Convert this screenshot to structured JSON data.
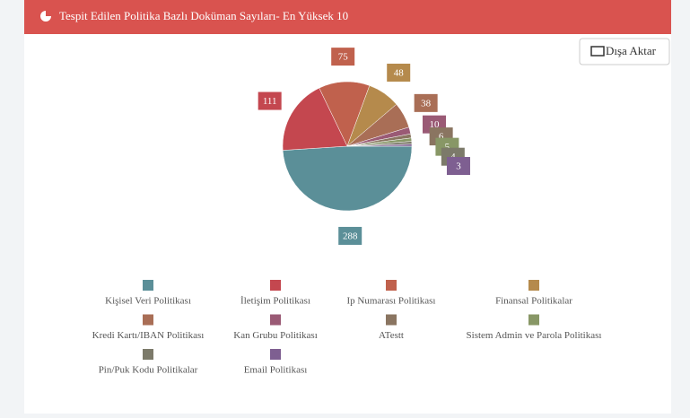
{
  "header": {
    "title": "Tespit Edilen Politika Bazlı Doküman Sayıları- En Yüksek 10",
    "export_button": "Dışa Aktar"
  },
  "chart_data": {
    "type": "pie",
    "categories": [
      "Kişisel Veri Politikası",
      "İletişim Politikası",
      "Ip Numarası Politikası",
      "Finansal Politikalar",
      "Kredi Kartı/IBAN Politikası",
      "Kan Grubu Politikası",
      "ATestt",
      "Sistem Admin ve Parola Politikası",
      "Pin/Puk Kodu Politikalar",
      "Email Politikası"
    ],
    "values": [
      288,
      111,
      75,
      48,
      38,
      10,
      6,
      5,
      4,
      3
    ],
    "colors": [
      "#5b8f98",
      "#c4474f",
      "#c0614d",
      "#b58a4c",
      "#a96e56",
      "#9a5a75",
      "#8a7561",
      "#889766",
      "#7c7a6a",
      "#7e5f91"
    ],
    "legend": "bottom"
  }
}
